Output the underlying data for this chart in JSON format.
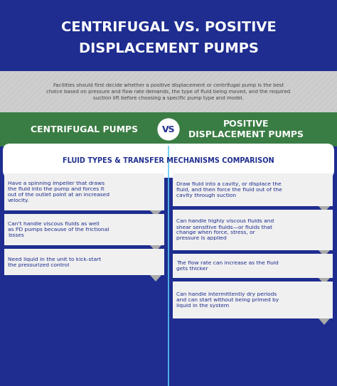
{
  "title_line1": "CENTRIFUGAL VS. POSITIVE",
  "title_line2": "DISPLACEMENT PUMPS",
  "title_bg": "#1e2d8f",
  "title_fg": "#ffffff",
  "subtitle_bg": "#dcdcdc",
  "subtitle_text": "Facilities should first decide whether a positive displacement or centrifugal pump is the best\nchoice based on pressure and flow rate demands, the type of fluid being moved, and the required\nsuction lift before choosing a specific pump type and model.",
  "subtitle_fg": "#444444",
  "vs_bar_bg": "#3a7d44",
  "vs_bar_fg": "#ffffff",
  "left_header": "CENTRIFUGAL PUMPS",
  "right_header": "POSITIVE\nDISPLACEMENT PUMPS",
  "vs_circle_bg": "#ffffff",
  "vs_circle_fg": "#1e2d8f",
  "main_bg": "#1e2d8f",
  "section_header": "FLUID TYPES & TRANSFER MECHANISMS COMPARISON",
  "section_header_bg": "#ffffff",
  "section_header_fg": "#1e2d8f",
  "divider_color": "#5bc8f5",
  "card_bg": "#f0f0f0",
  "card_fg": "#1e2d8f",
  "arrow_color": "#aaaaaa",
  "left_cards": [
    "Have a spinning impeller that draws\nthe fluid into the pump and forces it\nout of the outlet point at an increased\nvelocity.",
    "Can't handle viscous fluids as well\nas PD pumps because of the frictional\nlosses",
    "Need liquid in the unit to kick-start\nthe pressurized control"
  ],
  "right_cards": [
    "Draw fluid into a cavity, or displace the\nfluid, and then force the fluid out of the\ncavity through suction",
    "Can handle highly viscous fluids and\nshear sensitive fluids—or fluids that\nchange when force, stress, or\npressure is applied",
    "The flow rate can increase as the fluid\ngets thicker",
    "Can handle intermittently dry periods\nand can start without being primed by\nliquid in the system"
  ],
  "figw": 4.74,
  "figh": 5.43,
  "dpi": 100
}
